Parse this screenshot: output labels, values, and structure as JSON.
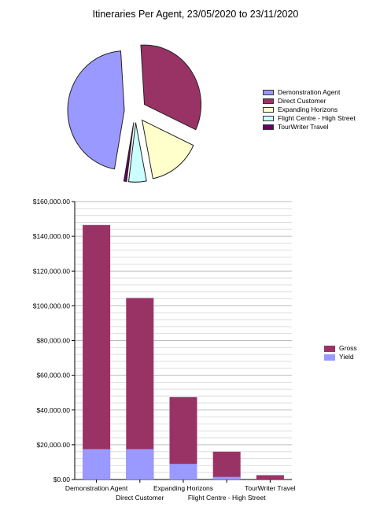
{
  "title": "Itineraries Per Agent, 23/05/2020 to 23/11/2020",
  "chart_data": [
    {
      "type": "pie",
      "exploded": true,
      "legend_position": "right",
      "slices": [
        {
          "label": "Demonstration Agent",
          "value": 146500,
          "color": "#9999ff"
        },
        {
          "label": "Direct Customer",
          "value": 104500,
          "color": "#993366"
        },
        {
          "label": "Expanding Horizons",
          "value": 47500,
          "color": "#ffffcc"
        },
        {
          "label": "Flight Centre - High Street",
          "value": 16000,
          "color": "#ccffff"
        },
        {
          "label": "TourWriter Travel",
          "value": 2500,
          "color": "#660066"
        }
      ]
    },
    {
      "type": "bar",
      "stacked": true,
      "grid": true,
      "legend_position": "right",
      "categories": [
        "Demonstration Agent",
        "Direct Customer",
        "Expanding Horizons",
        "Flight Centre - High Street",
        "TourWriter Travel"
      ],
      "series": [
        {
          "name": "Gross",
          "color": "#993366",
          "values": [
            146500,
            104500,
            47500,
            16000,
            2500
          ]
        },
        {
          "name": "Yield",
          "color": "#9999ff",
          "values": [
            17500,
            17500,
            9000,
            1500,
            0
          ]
        }
      ],
      "ylim": [
        0,
        160000
      ],
      "yticks": [
        0,
        20000,
        40000,
        60000,
        80000,
        100000,
        120000,
        140000,
        160000
      ],
      "ytick_labels": [
        "$0.00",
        "$20,000.00",
        "$40,000.00",
        "$60,000.00",
        "$80,000.00",
        "$100,000.00",
        "$120,000.00",
        "$140,000.00",
        "$160,000.00"
      ]
    }
  ]
}
